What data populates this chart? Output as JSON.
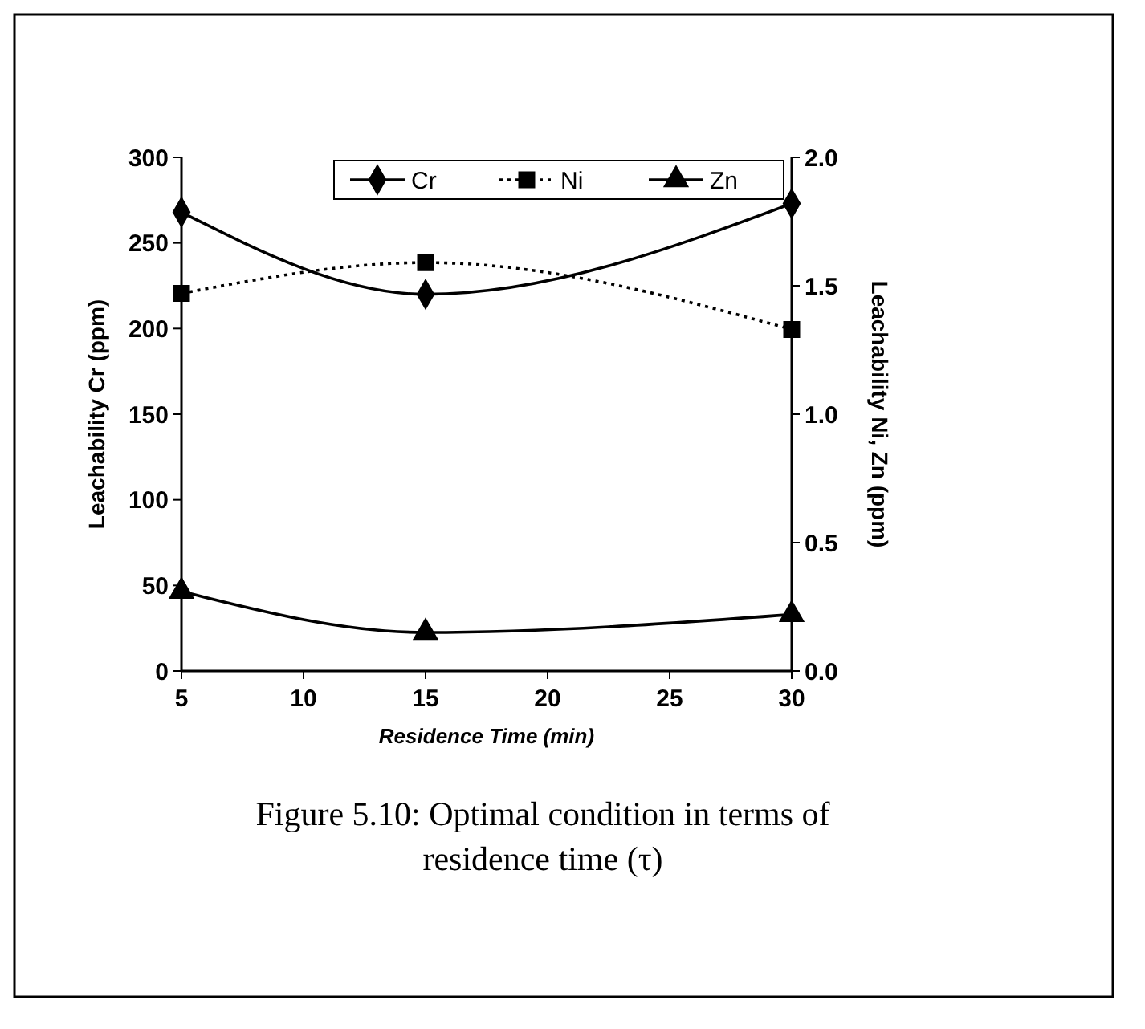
{
  "chart_data": {
    "type": "line",
    "xlabel": "Residence Time (min)",
    "ylabel": "Leachability Cr (ppm)",
    "y2label": "Leachability Ni, Zn (ppm)",
    "x": [
      5,
      15,
      30
    ],
    "xlim": [
      5,
      30
    ],
    "xticks": [
      5,
      10,
      15,
      20,
      25,
      30
    ],
    "ylim": [
      0,
      300
    ],
    "yticks": [
      0,
      50,
      100,
      150,
      200,
      250,
      300
    ],
    "y2lim": [
      0,
      2
    ],
    "y2ticks": [
      {
        "value": 0,
        "label": "0.0"
      },
      {
        "value": 0.5,
        "label": "0.5"
      },
      {
        "value": 1,
        "label": "1.0"
      },
      {
        "value": 1.5,
        "label": "1.5"
      },
      {
        "value": 2,
        "label": "2.0"
      }
    ],
    "grid": false,
    "legend": "top right",
    "series": [
      {
        "name": "Cr",
        "color": "#000000",
        "values": [
          268,
          220,
          273
        ],
        "marker": "diamond",
        "line_style": "solid"
      },
      {
        "name": "Ni",
        "color": "#000000",
        "values": [
          1.47,
          1.59,
          1.33
        ],
        "marker": "square",
        "line_style": "dotted",
        "axis": "y2"
      },
      {
        "name": "Zn",
        "color": "#000000",
        "values": [
          0.31,
          0.15,
          0.22
        ],
        "marker": "triangle",
        "line_style": "solid",
        "axis": "y2"
      }
    ],
    "annotations": [
      "Figure 5.10: Optimal condition in terms of residence time (τ)"
    ]
  }
}
